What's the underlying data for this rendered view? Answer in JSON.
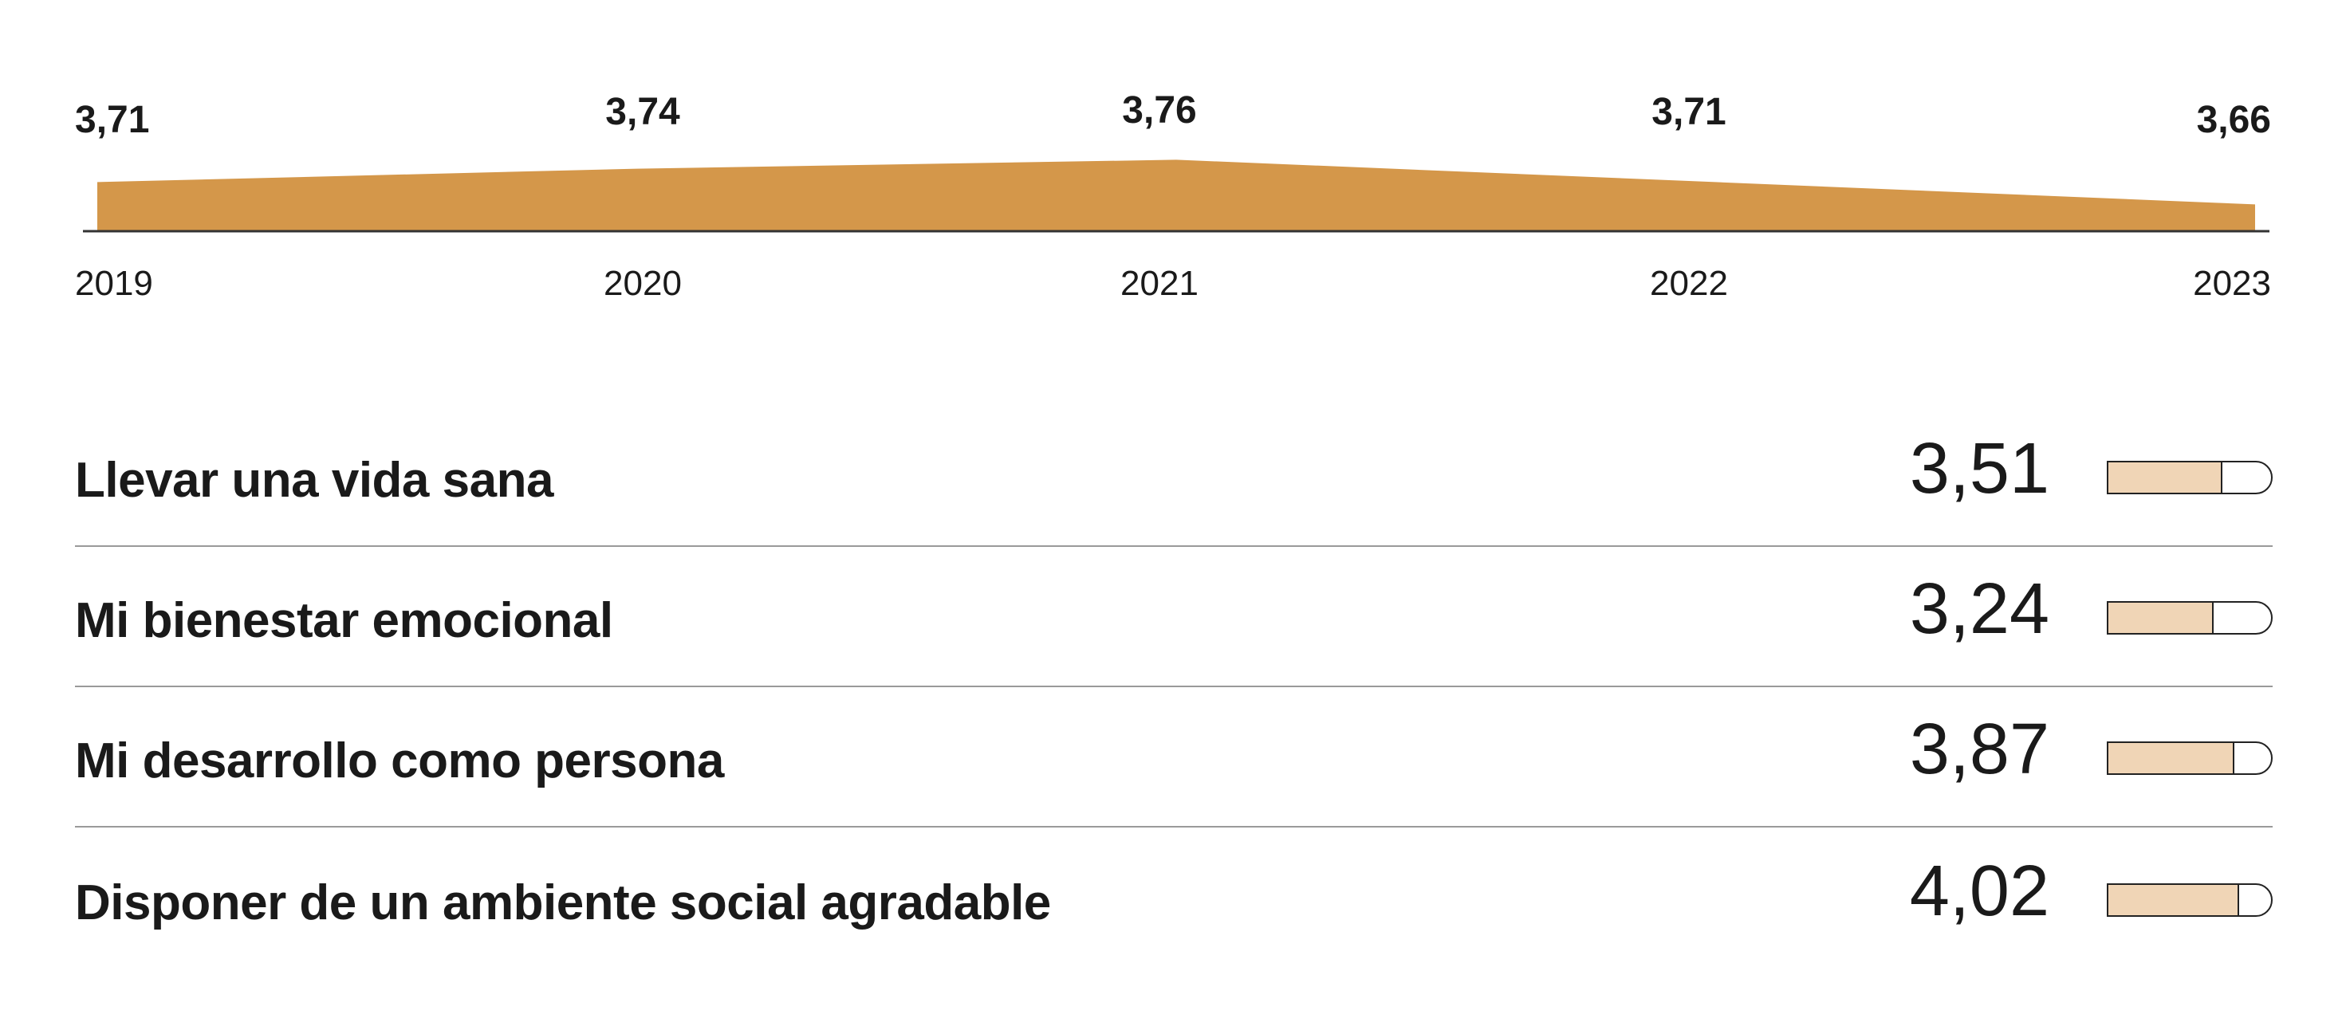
{
  "colors": {
    "area_fill": "#d4974a",
    "baseline": "#333333",
    "bar_fill": "#f0d5b6",
    "bar_border": "#222222",
    "divider": "#9a9a9a",
    "text": "#1a1a1a"
  },
  "chart_data": [
    {
      "type": "area",
      "categories": [
        "2019",
        "2020",
        "2021",
        "2022",
        "2023"
      ],
      "series": [
        {
          "values": [
            3.71,
            3.74,
            3.76,
            3.71,
            3.66
          ]
        }
      ],
      "value_labels": [
        "3,71",
        "3,74",
        "3,76",
        "3,71",
        "3,66"
      ],
      "title": "",
      "xlabel": "",
      "ylabel": "",
      "grid": false
    },
    {
      "type": "bar",
      "orientation": "horizontal",
      "categories": [
        "Llevar una vida sana",
        "Mi bienestar emocional",
        "Mi desarrollo como persona",
        "Disponer de un ambiente social agradable"
      ],
      "values": [
        3.51,
        3.24,
        3.87,
        4.02
      ],
      "value_labels": [
        "3,51",
        "3,24",
        "3,87",
        "4,02"
      ],
      "xlim": [
        0,
        5
      ]
    }
  ]
}
